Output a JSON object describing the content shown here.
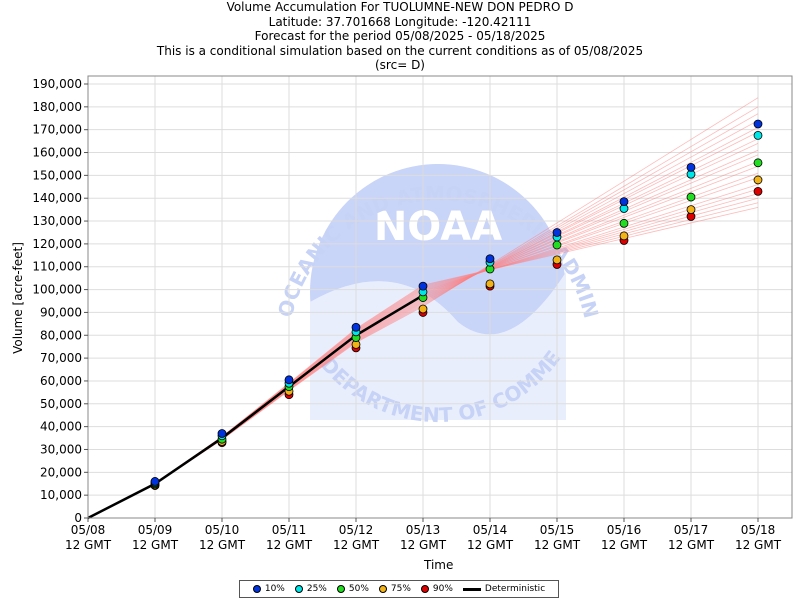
{
  "chart_data": {
    "type": "scatter",
    "title_lines": [
      "Volume Accumulation For TUOLUMNE-NEW DON PEDRO D",
      "Latitude: 37.701668 Longitude: -120.42111",
      "Forecast for the period 05/08/2025 - 05/18/2025",
      "This is a conditional simulation based on the current conditions as of 05/08/2025",
      "(src= D)"
    ],
    "xlabel": "Time",
    "ylabel": "Volume [acre-feet]",
    "ylim": [
      0,
      190000
    ],
    "yticks": [
      0,
      10000,
      20000,
      30000,
      40000,
      50000,
      60000,
      70000,
      80000,
      90000,
      100000,
      110000,
      120000,
      130000,
      140000,
      150000,
      160000,
      170000,
      180000,
      190000
    ],
    "ytick_labels": [
      "0",
      "10,000",
      "20,000",
      "30,000",
      "40,000",
      "50,000",
      "60,000",
      "70,000",
      "80,000",
      "90,000",
      "100,000",
      "110,000",
      "120,000",
      "130,000",
      "140,000",
      "150,000",
      "160,000",
      "170,000",
      "180,000",
      "190,000"
    ],
    "x_dates": [
      "05/08",
      "05/09",
      "05/10",
      "05/11",
      "05/12",
      "05/13",
      "05/14",
      "05/15",
      "05/16",
      "05/17",
      "05/18"
    ],
    "x_tick_sublabel": "12 GMT",
    "grid": true,
    "legend_position": "bottom",
    "series": [
      {
        "name": "10%",
        "color": "#0033dd",
        "values": [
          0,
          16000,
          37000,
          60500,
          83500,
          101500,
          113500,
          125000,
          138500,
          153500,
          172500
        ]
      },
      {
        "name": "25%",
        "color": "#00e5e5",
        "values": [
          0,
          15500,
          36000,
          59000,
          81500,
          99000,
          112000,
          123000,
          135500,
          150500,
          167500
        ]
      },
      {
        "name": "50%",
        "color": "#22dd22",
        "values": [
          0,
          15000,
          34500,
          57500,
          79000,
          96500,
          109000,
          119500,
          129000,
          140500,
          155500
        ]
      },
      {
        "name": "75%",
        "color": "#f2b318",
        "values": [
          0,
          14500,
          33500,
          55500,
          76000,
          91500,
          102500,
          113000,
          123500,
          135000,
          148000
        ]
      },
      {
        "name": "90%",
        "color": "#dd0000",
        "values": [
          0,
          14200,
          33000,
          54000,
          74500,
          90000,
          101500,
          111000,
          121500,
          132000,
          143000
        ]
      }
    ],
    "deterministic": {
      "name": "Deterministic",
      "color": "#000000",
      "values": [
        0,
        15000,
        35000,
        57500,
        80000,
        97500
      ]
    },
    "trace_color": "#ff8080",
    "traces_end_values": [
      184000,
      180000,
      177000,
      174000,
      171000,
      169000,
      166000,
      164000,
      161000,
      159000,
      156000,
      154000,
      151000,
      149000,
      146000,
      144000,
      142000,
      140000,
      138000,
      136000
    ]
  },
  "watermark": {
    "center_text": "NOAA",
    "arc_top": "NATIONAL OCEANIC AND ATMOSPHERIC ADMINISTRATION",
    "arc_bottom": "U.S. DEPARTMENT OF COMMERCE",
    "colors": {
      "disc": "#c8d4f8",
      "wave": "#e8eefc",
      "text": "#c6d2f6"
    }
  }
}
